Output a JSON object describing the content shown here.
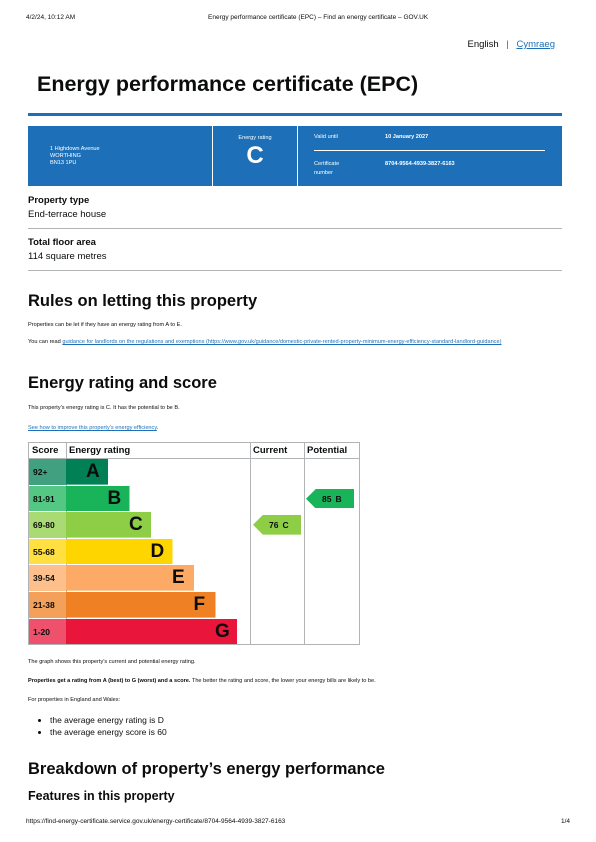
{
  "print_header": {
    "date": "4/2/24, 10:12 AM",
    "title": "Energy performance certificate (EPC) – Find an energy certificate – GOV.UK"
  },
  "language": {
    "current": "English",
    "other": "Cymraeg"
  },
  "title": "Energy performance certificate (EPC)",
  "summary": {
    "address": [
      "1 Highdown Avenue",
      "WORTHING",
      "BN13 1PU"
    ],
    "rating_label": "Energy rating",
    "rating": "C",
    "valid_until_label": "Valid until",
    "valid_until": "10 January 2027",
    "certificate_label": "Certificate number",
    "certificate": "8704-9564-4939-3827-6163"
  },
  "property": [
    {
      "label": "Property type",
      "value": "End-terrace house"
    },
    {
      "label": "Total floor area",
      "value": "114 square metres"
    }
  ],
  "letting": {
    "heading": "Rules on letting this property",
    "text": "Properties can be let if they have an energy rating from A to E.",
    "link_intro": "You can read",
    "link": "guidance for landlords on the regulations and exemptions (https://www.gov.uk/guidance/domestic-private-rented-property-minimum-energy-efficiency-standard-landlord-guidance)"
  },
  "energy": {
    "heading": "Energy rating and score",
    "text": "This property’s energy rating is C. It has the potential to be B.",
    "link": "See how to improve this property’s energy efficiency",
    "link_end": ".",
    "table": {
      "headers": [
        "Score",
        "Energy rating",
        "Current",
        "Potential"
      ],
      "bands": [
        {
          "score": "92+",
          "letter": "A",
          "color": "#008054"
        },
        {
          "score": "81-91",
          "letter": "B",
          "color": "#19b459"
        },
        {
          "score": "69-80",
          "letter": "C",
          "color": "#8dce46"
        },
        {
          "score": "55-68",
          "letter": "D",
          "color": "#ffd500"
        },
        {
          "score": "39-54",
          "letter": "E",
          "color": "#fcaa65"
        },
        {
          "score": "21-38",
          "letter": "F",
          "color": "#ef8023"
        },
        {
          "score": "1-20",
          "letter": "G",
          "color": "#e9153b"
        }
      ],
      "current": {
        "score": 76,
        "rating": "C"
      },
      "potential": {
        "score": 85,
        "rating": "B"
      }
    },
    "graph_note": "The graph shows this property’s current and potential energy rating.",
    "bold_note": "Properties get a rating from A (best) to G (worst) and a score.",
    "note_rest": "The better the rating and score, the lower your energy bills are likely to be.",
    "averages_intro": "For properties in England and Wales:",
    "averages": [
      "the average energy rating is D",
      "the average energy score is 60"
    ]
  },
  "breakdown": {
    "heading": "Breakdown of property’s energy performance",
    "subheading": "Features in this property"
  },
  "footer": {
    "url": "https://find-energy-certificate.service.gov.uk/energy-certificate/8704-9564-4939-3827-6163",
    "page": "1/4"
  }
}
